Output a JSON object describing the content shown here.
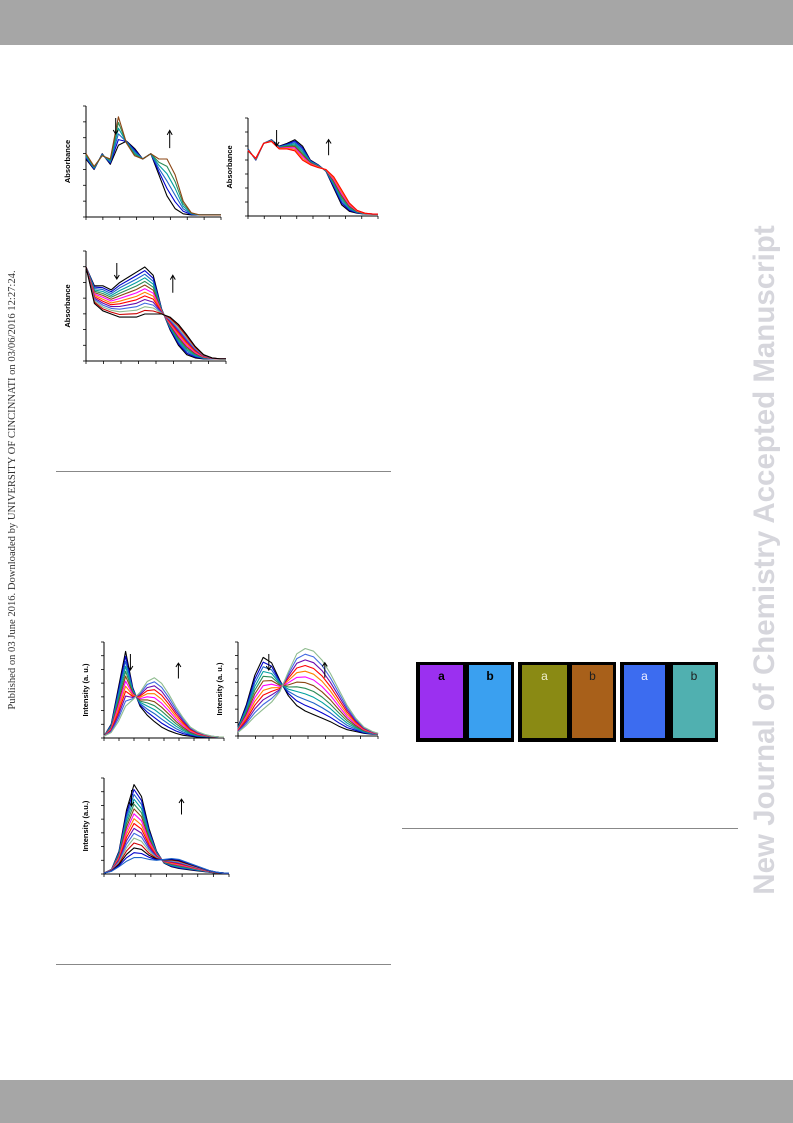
{
  "header_band": "",
  "footer_band": "",
  "watermark": "New Journal of Chemistry Accepted Manuscript",
  "sidenote": "Published on 03 June 2016. Downloaded by UNIVERSITY OF CINCINNATI on 03/06/2016 12:27:24.",
  "colors": {
    "band": "#a6a6a6",
    "watermark": "#d6d6dc",
    "series": [
      "#000000",
      "#0000cc",
      "#1e64c8",
      "#00a0a0",
      "#2e8b57",
      "#8b4513",
      "#ff00ff",
      "#ff7f00",
      "#ff0000",
      "#6a0dad",
      "#4169e1",
      "#8fbc8f",
      "#cc0000"
    ]
  },
  "chart_data": [
    {
      "type": "line",
      "id": "abs-1",
      "ylabel": "Absorbance",
      "xlabel": "",
      "arrows": [
        "down",
        "up"
      ],
      "x": [
        0,
        0.06,
        0.12,
        0.18,
        0.24,
        0.3,
        0.36,
        0.42,
        0.48,
        0.54,
        0.6,
        0.66,
        0.72,
        0.78,
        0.84,
        0.9,
        0.96,
        1
      ],
      "start": [
        0.55,
        0.45,
        0.6,
        0.5,
        0.68,
        0.72,
        0.65,
        0.55,
        0.6,
        0.4,
        0.2,
        0.08,
        0.03,
        0.02,
        0.02,
        0.02,
        0.02,
        0.02
      ],
      "end": [
        0.6,
        0.48,
        0.58,
        0.55,
        0.95,
        0.7,
        0.58,
        0.55,
        0.6,
        0.55,
        0.55,
        0.4,
        0.15,
        0.04,
        0.02,
        0.02,
        0.02,
        0.02
      ],
      "n": 6
    },
    {
      "type": "line",
      "id": "abs-2",
      "ylabel": "Absorbance",
      "xlabel": "",
      "arrows": [
        "down",
        "up"
      ],
      "x": [
        0,
        0.06,
        0.12,
        0.18,
        0.24,
        0.3,
        0.36,
        0.42,
        0.48,
        0.54,
        0.6,
        0.66,
        0.72,
        0.78,
        0.84,
        0.9,
        0.96,
        1
      ],
      "start": [
        0.72,
        0.6,
        0.78,
        0.82,
        0.75,
        0.78,
        0.82,
        0.75,
        0.6,
        0.55,
        0.48,
        0.3,
        0.12,
        0.05,
        0.03,
        0.02,
        0.02,
        0.02
      ],
      "end": [
        0.7,
        0.62,
        0.78,
        0.8,
        0.72,
        0.72,
        0.7,
        0.6,
        0.55,
        0.52,
        0.5,
        0.42,
        0.28,
        0.14,
        0.06,
        0.03,
        0.02,
        0.02
      ],
      "n": 9
    },
    {
      "type": "line",
      "id": "abs-3",
      "ylabel": "Absorbance",
      "xlabel": "",
      "arrows": [
        "down",
        "up"
      ],
      "x": [
        0,
        0.06,
        0.12,
        0.18,
        0.24,
        0.3,
        0.36,
        0.42,
        0.48,
        0.54,
        0.6,
        0.66,
        0.72,
        0.78,
        0.84,
        0.9,
        0.96,
        1
      ],
      "start": [
        0.9,
        0.72,
        0.72,
        0.68,
        0.75,
        0.8,
        0.85,
        0.9,
        0.82,
        0.5,
        0.3,
        0.15,
        0.06,
        0.03,
        0.02,
        0.02,
        0.02,
        0.02
      ],
      "end": [
        0.9,
        0.55,
        0.48,
        0.45,
        0.42,
        0.42,
        0.42,
        0.45,
        0.45,
        0.45,
        0.42,
        0.35,
        0.25,
        0.14,
        0.06,
        0.03,
        0.02,
        0.02
      ],
      "n": 14
    },
    {
      "type": "line",
      "id": "pl-1",
      "ylabel": "Intensity (a. u.)",
      "xlabel": "",
      "arrows": [
        "down",
        "up"
      ],
      "x": [
        0,
        0.06,
        0.12,
        0.18,
        0.24,
        0.3,
        0.36,
        0.42,
        0.48,
        0.54,
        0.6,
        0.66,
        0.72,
        0.78,
        0.84,
        0.9,
        0.96,
        1
      ],
      "start": [
        0.02,
        0.15,
        0.55,
        0.95,
        0.55,
        0.35,
        0.25,
        0.18,
        0.12,
        0.08,
        0.05,
        0.03,
        0.02,
        0.01,
        0.01,
        0.01,
        0.01,
        0.01
      ],
      "end": [
        0.02,
        0.06,
        0.18,
        0.35,
        0.42,
        0.5,
        0.62,
        0.66,
        0.6,
        0.48,
        0.34,
        0.22,
        0.12,
        0.07,
        0.04,
        0.02,
        0.01,
        0.01
      ],
      "n": 12
    },
    {
      "type": "line",
      "id": "pl-2",
      "ylabel": "Intensity (a. u.)",
      "xlabel": "",
      "arrows": [
        "down",
        "up"
      ],
      "x": [
        0,
        0.06,
        0.12,
        0.18,
        0.24,
        0.3,
        0.36,
        0.42,
        0.48,
        0.54,
        0.6,
        0.66,
        0.72,
        0.78,
        0.84,
        0.9,
        0.96,
        1
      ],
      "start": [
        0.1,
        0.35,
        0.68,
        0.88,
        0.82,
        0.62,
        0.45,
        0.34,
        0.28,
        0.24,
        0.2,
        0.16,
        0.11,
        0.07,
        0.05,
        0.03,
        0.02,
        0.02
      ],
      "end": [
        0.04,
        0.12,
        0.22,
        0.3,
        0.38,
        0.5,
        0.72,
        0.92,
        0.98,
        0.95,
        0.85,
        0.7,
        0.52,
        0.34,
        0.2,
        0.1,
        0.05,
        0.03
      ],
      "n": 12
    },
    {
      "type": "line",
      "id": "pl-3",
      "ylabel": "Intensity (a.u.)",
      "xlabel": "",
      "arrows": [
        "down",
        "up"
      ],
      "x": [
        0,
        0.06,
        0.12,
        0.18,
        0.24,
        0.3,
        0.36,
        0.42,
        0.48,
        0.54,
        0.6,
        0.66,
        0.72,
        0.78,
        0.84,
        0.9,
        0.96,
        1
      ],
      "start": [
        0.01,
        0.05,
        0.25,
        0.7,
        0.98,
        0.85,
        0.5,
        0.25,
        0.12,
        0.08,
        0.06,
        0.05,
        0.04,
        0.03,
        0.02,
        0.01,
        0.01,
        0.01
      ],
      "end": [
        0.01,
        0.03,
        0.08,
        0.14,
        0.18,
        0.18,
        0.16,
        0.15,
        0.16,
        0.17,
        0.16,
        0.13,
        0.1,
        0.07,
        0.04,
        0.02,
        0.01,
        0.01
      ],
      "n": 16
    }
  ],
  "photos": [
    {
      "panels": [
        {
          "label": "a",
          "color": "#9b30f0",
          "text": "#000",
          "bold": true
        },
        {
          "label": "b",
          "color": "#3aa0f0",
          "text": "#000",
          "bold": true
        }
      ]
    },
    {
      "panels": [
        {
          "label": "a",
          "color": "#8a8a14",
          "text": "#f0f0d0",
          "bold": false
        },
        {
          "label": "b",
          "color": "#a8601a",
          "text": "#202020",
          "bold": false
        }
      ]
    },
    {
      "panels": [
        {
          "label": "a",
          "color": "#3c6cf0",
          "text": "#f0f0ff",
          "bold": false
        },
        {
          "label": "b",
          "color": "#50b0b0",
          "text": "#202020",
          "bold": false
        }
      ]
    }
  ]
}
